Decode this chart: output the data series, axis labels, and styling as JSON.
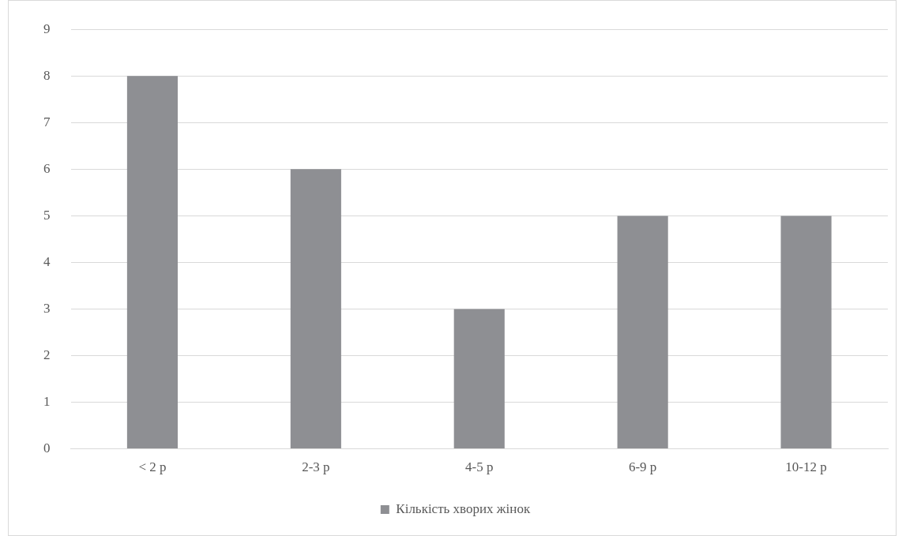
{
  "chart_data": {
    "type": "bar",
    "categories": [
      "< 2 р",
      "2-3 р",
      "4-5 р",
      "6-9 р",
      "10-12 р"
    ],
    "series": [
      {
        "name": "Кількість хворих жінок",
        "color": "#8e8f93",
        "values": [
          8,
          6,
          3,
          5,
          5
        ]
      }
    ],
    "ylim": [
      0,
      9
    ],
    "yticks": [
      0,
      1,
      2,
      3,
      4,
      5,
      6,
      7,
      8,
      9
    ],
    "grid": "y",
    "legend": "bottom"
  }
}
